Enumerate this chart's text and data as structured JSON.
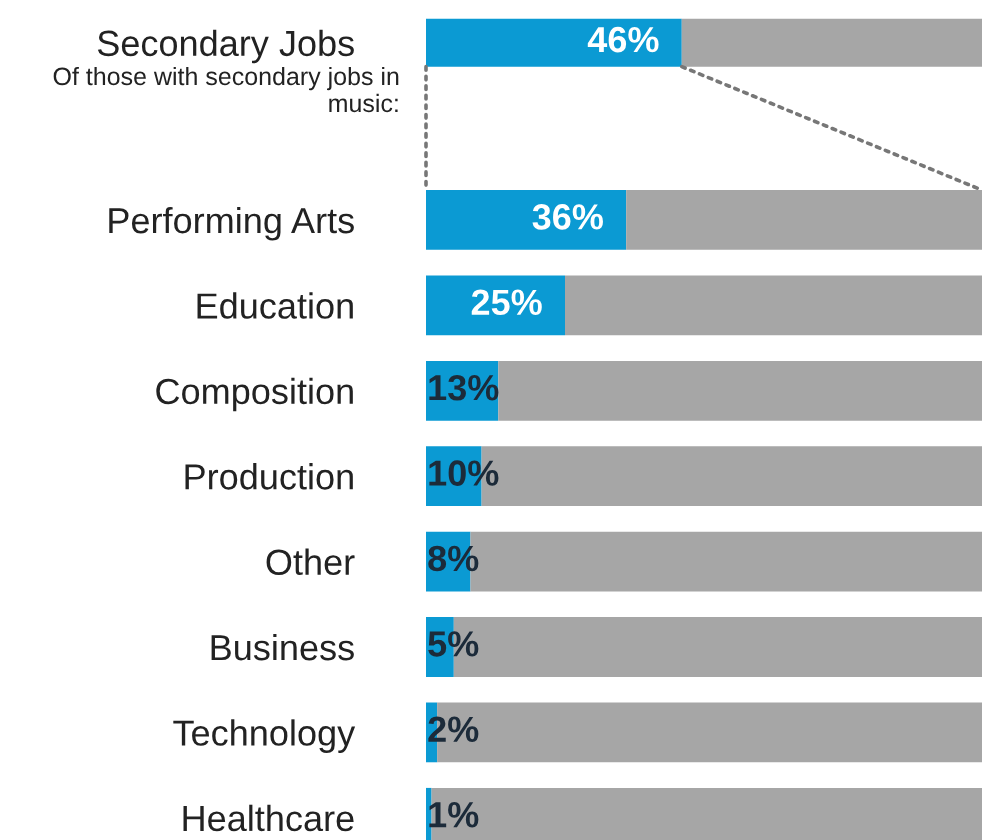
{
  "chart_data": [
    {
      "type": "bar",
      "orientation": "horizontal",
      "stacked": true,
      "categories": [
        "Secondary Jobs"
      ],
      "xlim": [
        0,
        100
      ],
      "tick_labels": "y",
      "series": [
        {
          "color": "#0b9ad3",
          "values": [
            46
          ],
          "value_labels": [
            "46%"
          ]
        },
        {
          "color": "#a6a6a6",
          "values": [
            54
          ]
        }
      ]
    },
    {
      "type": "bar",
      "orientation": "horizontal",
      "stacked": true,
      "subtitle": "Of those with secondary jobs in music:",
      "categories": [
        "Performing Arts",
        "Education",
        "Composition",
        "Production",
        "Other",
        "Business",
        "Technology",
        "Healthcare"
      ],
      "xlim": [
        0,
        100
      ],
      "tick_labels": "y",
      "series": [
        {
          "color": "#0b9ad3",
          "values": [
            36,
            25,
            13,
            10,
            8,
            5,
            2,
            1
          ],
          "value_labels": [
            "36%",
            "25%",
            "13%",
            "10%",
            "8%",
            "5%",
            "2%",
            "1%"
          ]
        },
        {
          "color": "#a6a6a6",
          "values": [
            64,
            75,
            87,
            90,
            92,
            95,
            98,
            99
          ]
        }
      ]
    }
  ]
}
